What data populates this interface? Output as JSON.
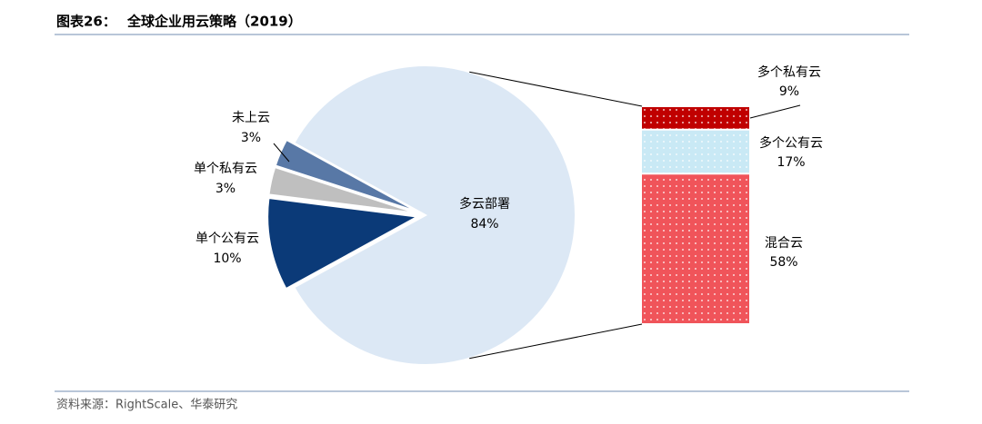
{
  "header": {
    "label": "图表26：",
    "title": "全球企业用云策略（2019）"
  },
  "chart_data": {
    "type": "bar-of-pie",
    "pie": {
      "categories": [
        "多云部署",
        "单个公有云",
        "单个私有云",
        "未上云"
      ],
      "values": [
        84,
        10,
        3,
        3
      ],
      "value_labels": [
        "84%",
        "10%",
        "3%",
        "3%"
      ],
      "colors": [
        "#dce8f5",
        "#0b3a78",
        "#bfbfbf",
        "#5878a6"
      ]
    },
    "bar": {
      "categories": [
        "混合云",
        "多个公有云",
        "多个私有云"
      ],
      "values": [
        58,
        17,
        9
      ],
      "value_labels": [
        "58%",
        "17%",
        "9%"
      ],
      "colors": [
        "#f0545a",
        "#c9e9f5",
        "#c00000"
      ],
      "pattern": "dots"
    }
  },
  "source": "资料来源：RightScale、华泰研究"
}
